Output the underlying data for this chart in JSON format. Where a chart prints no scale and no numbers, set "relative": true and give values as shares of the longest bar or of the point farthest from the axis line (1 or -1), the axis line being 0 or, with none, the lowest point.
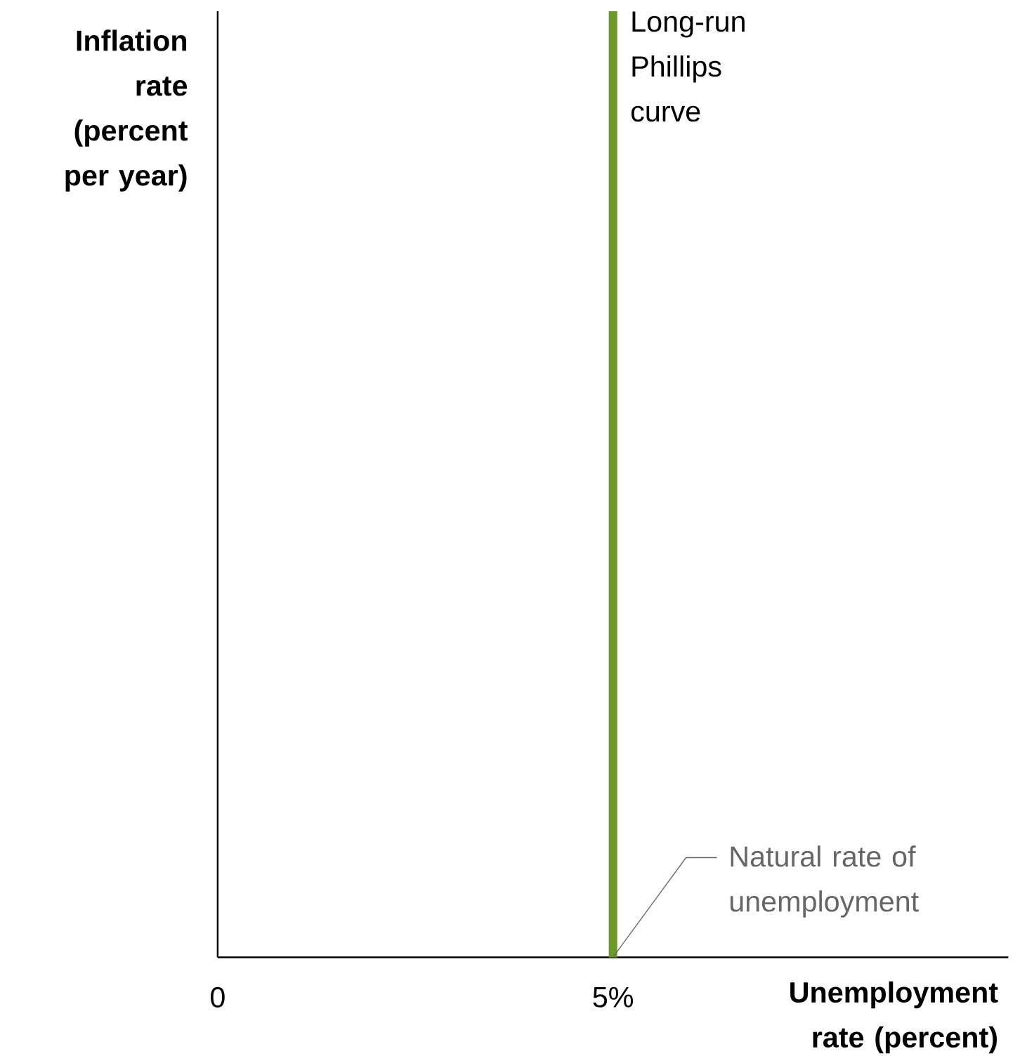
{
  "chart_data": {
    "type": "line",
    "relative": true,
    "xlabel": "Unemployment rate (percent)",
    "ylabel": "Inflation rate (percent per year)",
    "xlim": [
      0,
      10
    ],
    "xticks": [
      0,
      {
        "value": 5,
        "label": "5%"
      }
    ],
    "marker": "none",
    "series": [
      {
        "name": "Long-run Phillips curve",
        "color": "#6b9a2a",
        "x": [
          5,
          5
        ],
        "values": [
          0,
          1
        ]
      }
    ],
    "annotations": [
      {
        "text": "Natural rate of unemployment",
        "x": 5,
        "y": 0
      }
    ]
  }
}
